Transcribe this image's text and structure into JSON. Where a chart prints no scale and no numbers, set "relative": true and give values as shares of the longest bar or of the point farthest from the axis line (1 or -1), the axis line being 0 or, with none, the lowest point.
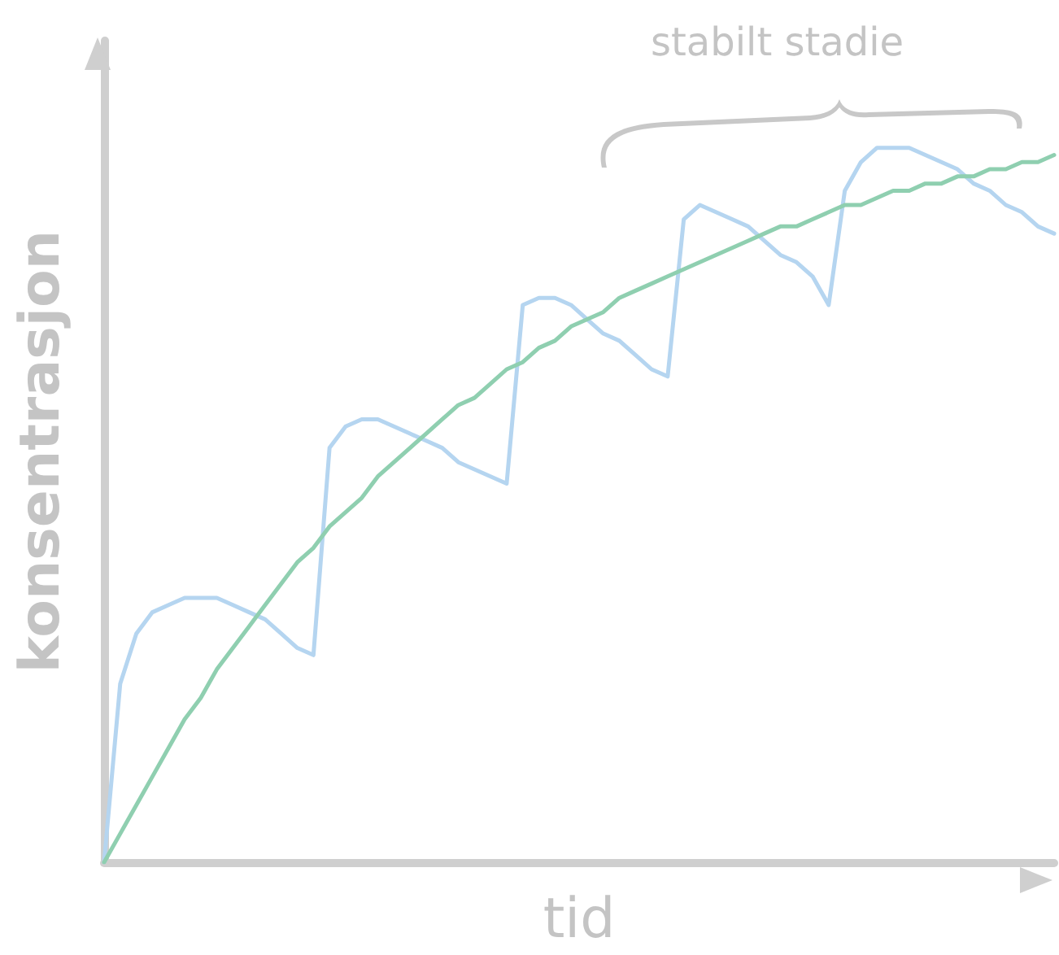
{
  "chart_data": {
    "type": "line",
    "relative": true,
    "xlabel": "tid",
    "ylabel": "konsentrasjon",
    "annotations": [
      "stabilt stadie"
    ],
    "grid": false,
    "marker": "none",
    "line_style": "solid",
    "categories": [
      null,
      null,
      null,
      null,
      null,
      null,
      null,
      null,
      null,
      null,
      null,
      null,
      null,
      null,
      null,
      null,
      null,
      null,
      null,
      null,
      null,
      null,
      null,
      null,
      null,
      null,
      null,
      null,
      null,
      null,
      null,
      null,
      null,
      null,
      null,
      null,
      null,
      null,
      null,
      null,
      null,
      null,
      null,
      null,
      null,
      null,
      null,
      null,
      null,
      null,
      null,
      null,
      null,
      null,
      null,
      null,
      null,
      null,
      null,
      null
    ],
    "series": [
      {
        "color": "#b5d5f0",
        "values": [
          0,
          0.25,
          0.32,
          0.35,
          0.36,
          0.37,
          0.37,
          0.37,
          0.36,
          0.35,
          0.34,
          0.32,
          0.3,
          0.29,
          0.58,
          0.61,
          0.62,
          0.62,
          0.61,
          0.6,
          0.59,
          0.58,
          0.56,
          0.55,
          0.54,
          0.53,
          0.78,
          0.79,
          0.79,
          0.78,
          0.76,
          0.74,
          0.73,
          0.71,
          0.69,
          0.68,
          0.9,
          0.92,
          0.91,
          0.9,
          0.89,
          0.87,
          0.85,
          0.84,
          0.82,
          0.78,
          0.94,
          0.98,
          1,
          1,
          1,
          0.99,
          0.98,
          0.97,
          0.95,
          0.94,
          0.92,
          0.91,
          0.89,
          0.88
        ]
      },
      {
        "color": "#8fcfb0",
        "values": [
          0,
          0.04,
          0.08,
          0.12,
          0.16,
          0.2,
          0.23,
          0.27,
          0.3,
          0.33,
          0.36,
          0.39,
          0.42,
          0.44,
          0.47,
          0.49,
          0.51,
          0.54,
          0.56,
          0.58,
          0.6,
          0.62,
          0.64,
          0.65,
          0.67,
          0.69,
          0.7,
          0.72,
          0.73,
          0.75,
          0.76,
          0.77,
          0.79,
          0.8,
          0.81,
          0.82,
          0.83,
          0.84,
          0.85,
          0.86,
          0.87,
          0.88,
          0.89,
          0.89,
          0.9,
          0.91,
          0.92,
          0.92,
          0.93,
          0.94,
          0.94,
          0.95,
          0.95,
          0.96,
          0.96,
          0.97,
          0.97,
          0.98,
          0.98,
          0.99
        ]
      }
    ]
  }
}
